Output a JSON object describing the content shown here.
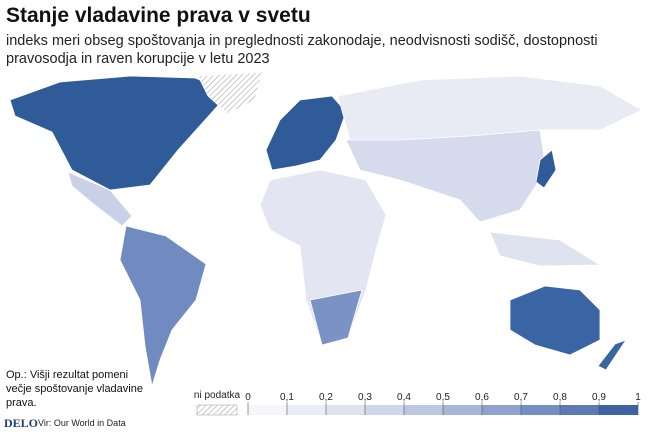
{
  "header": {
    "title": "Stanje vladavine prava v svetu",
    "subtitle": "indeks meri obseg spoštovanja in preglednosti zakonodaje, neodvisnosti sodišč, dostopnosti pravosodja in raven korupcije v letu 2023"
  },
  "legend": {
    "no_data_label": "ni podatka",
    "ticks": [
      0,
      {
        "value": 0.1,
        "label": "0,1"
      },
      {
        "value": 0.2,
        "label": "0,2"
      },
      {
        "value": 0.3,
        "label": "0,3"
      },
      {
        "value": 0.4,
        "label": "0,4"
      },
      {
        "value": 0.5,
        "label": "0,5"
      },
      {
        "value": 0.6,
        "label": "0,6"
      },
      {
        "value": 0.7,
        "label": "0,7"
      },
      {
        "value": 0.8,
        "label": "0,8"
      },
      {
        "value": 0.9,
        "label": "0,9"
      },
      1
    ],
    "colors": [
      "#f5f5fb",
      "#ebedf6",
      "#dfe3f0",
      "#d0d7ea",
      "#bcc7e2",
      "#a6b6d8",
      "#8ea2cd",
      "#768fc2",
      "#5d7ab5",
      "#3f62a3"
    ]
  },
  "footer": {
    "note": "Op.: Višji rezultat pomeni večje spoštovanje vladavine prava.",
    "logo": "DELO",
    "source": "Vir: Our World in Data"
  }
}
